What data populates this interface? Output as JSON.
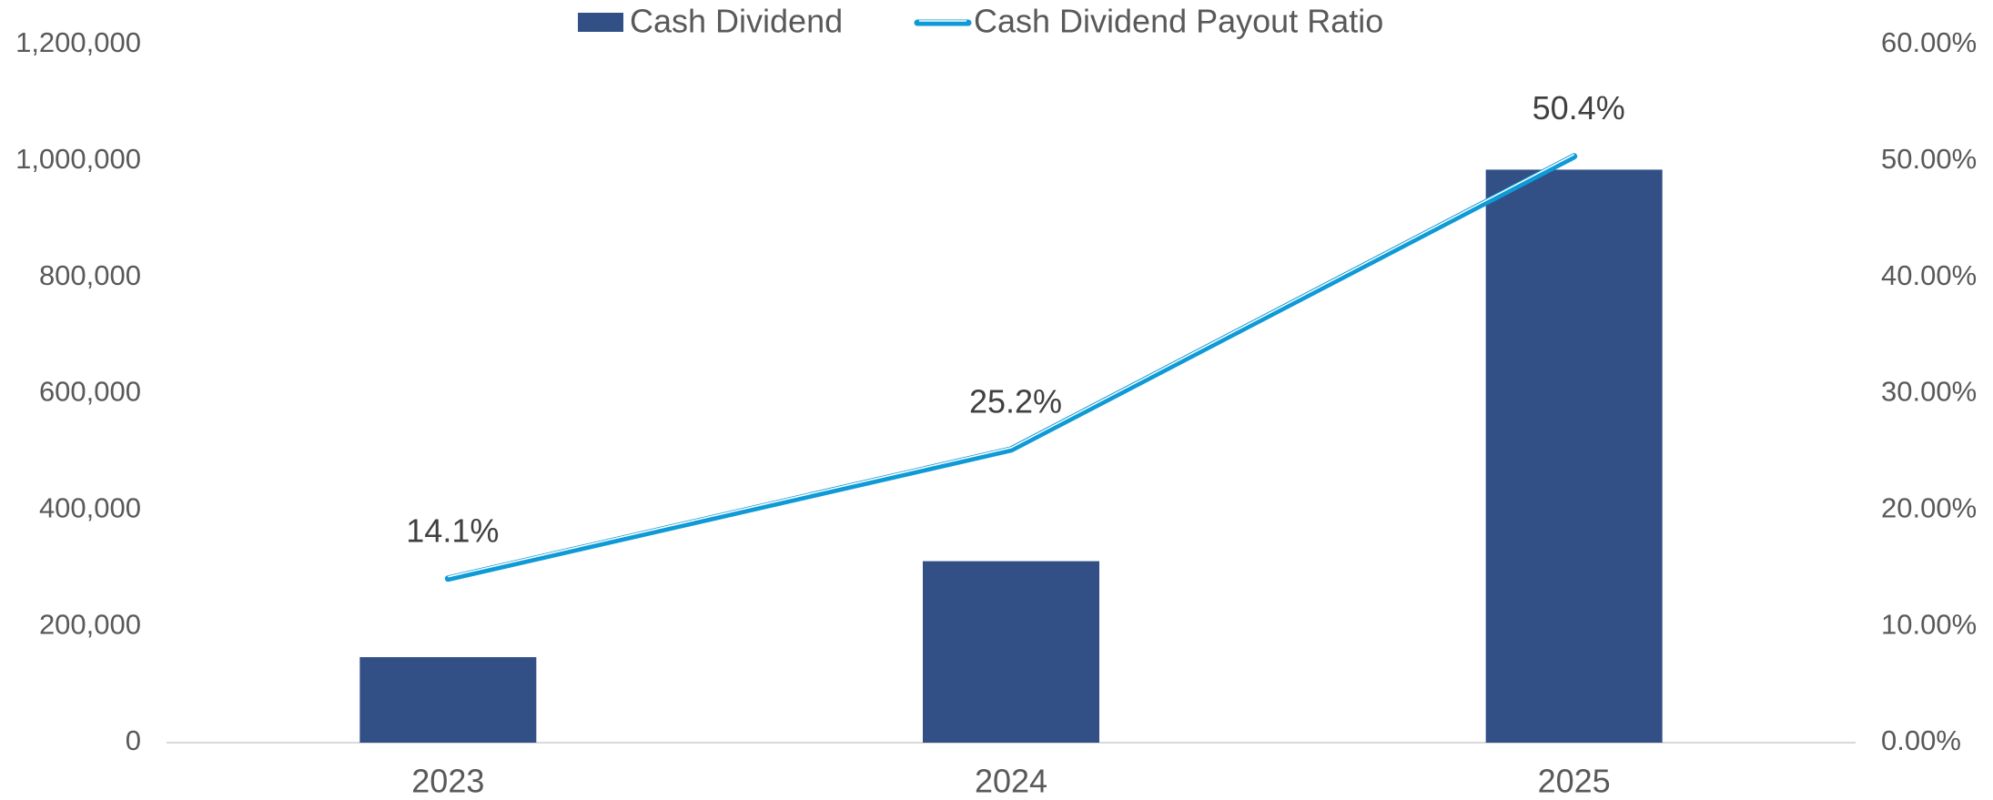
{
  "chart_data": {
    "type": "bar_line",
    "categories": [
      "2023",
      "2024",
      "2025"
    ],
    "series": [
      {
        "name": "Cash Dividend",
        "type": "bar",
        "color": "#325086",
        "values": [
          147000,
          312000,
          985000
        ]
      },
      {
        "name": "Cash Dividend Payout Ratio",
        "type": "line",
        "axis": "y2",
        "color": "#0e9ad6",
        "values": [
          14.1,
          25.2,
          50.4
        ],
        "value_labels": [
          "14.1%",
          "25.2%",
          "50.4%"
        ]
      }
    ],
    "ylim": [
      0,
      1200000
    ],
    "yticks": [
      0,
      {
        "value": 200000,
        "label": "200,000"
      },
      {
        "value": 400000,
        "label": "400,000"
      },
      {
        "value": 600000,
        "label": "600,000"
      },
      {
        "value": 800000,
        "label": "800,000"
      },
      {
        "value": 1000000,
        "label": "1,000,000"
      },
      {
        "value": 1200000,
        "label": "1,200,000"
      }
    ],
    "y2lim": [
      0,
      60
    ],
    "y2ticks": [
      {
        "value": 0,
        "label": "0.00%"
      },
      {
        "value": 10,
        "label": "10.00%"
      },
      {
        "value": 20,
        "label": "20.00%"
      },
      {
        "value": 30,
        "label": "30.00%"
      },
      {
        "value": 40,
        "label": "40.00%"
      },
      {
        "value": 50,
        "label": "50.00%"
      },
      {
        "value": 60,
        "label": "60.00%"
      }
    ],
    "legend": "top"
  }
}
